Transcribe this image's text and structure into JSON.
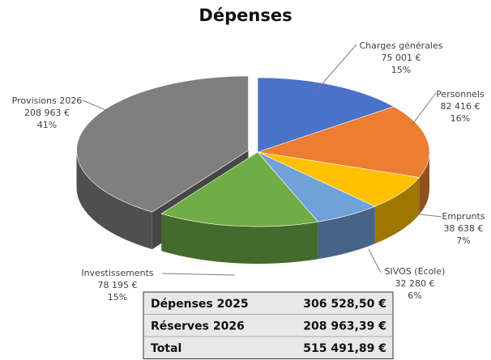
{
  "chart_data": {
    "type": "pie3d",
    "title": "Dépenses",
    "categories": [
      "Charges générales",
      "Personnels",
      "Emprunts",
      "SIVOS (Ecole)",
      "Investissements",
      "Provisions 2026"
    ],
    "values": [
      75001,
      82416,
      38638,
      32280,
      78195,
      208963
    ],
    "value_labels": [
      "75 001 €",
      "82 416 €",
      "38 638 €",
      "32 280 €",
      "78 195 €",
      "208 963 €"
    ],
    "percents": [
      15,
      16,
      7,
      6,
      15,
      41
    ],
    "percent_labels": [
      "15%",
      "16%",
      "7%",
      "6%",
      "15%",
      "41%"
    ],
    "colors": [
      "#4a72c8",
      "#ed7d31",
      "#ffc000",
      "#6fa2d8",
      "#70ad47",
      "#7f7f7f"
    ],
    "exploded": [
      false,
      false,
      false,
      false,
      false,
      true
    ]
  },
  "table": {
    "rows": [
      [
        "Dépenses 2025",
        "306 528,50 €"
      ],
      [
        "Réserves 2026",
        "208 963,39 €"
      ],
      [
        "Total",
        "515 491,89 €"
      ]
    ]
  }
}
